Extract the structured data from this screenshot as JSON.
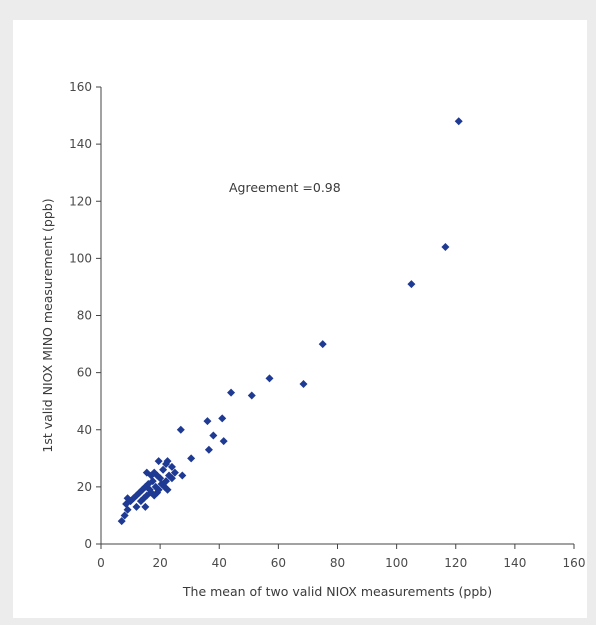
{
  "chart_data": {
    "type": "scatter",
    "title": "",
    "xlabel": "The mean of two valid NIOX measurements (ppb)",
    "ylabel": "1st valid NIOX MINO measurement (ppb)",
    "annotation": "Agreement =0.98",
    "xlim": [
      0,
      160
    ],
    "ylim": [
      0,
      160
    ],
    "xticks": [
      0,
      20,
      40,
      60,
      80,
      100,
      120,
      140,
      160
    ],
    "yticks": [
      0,
      20,
      40,
      60,
      80,
      100,
      120,
      140,
      160
    ],
    "grid": false,
    "marker": "diamond",
    "marker_color": "#1f3a93",
    "points": [
      [
        121,
        148
      ],
      [
        116.5,
        104
      ],
      [
        105,
        91
      ],
      [
        75,
        70
      ],
      [
        57,
        58
      ],
      [
        68.5,
        56
      ],
      [
        51,
        52
      ],
      [
        44,
        53
      ],
      [
        41,
        44
      ],
      [
        36,
        43
      ],
      [
        38,
        38
      ],
      [
        41.5,
        36
      ],
      [
        36.5,
        33
      ],
      [
        27,
        40
      ],
      [
        30.5,
        30
      ],
      [
        27.5,
        24
      ],
      [
        24,
        27
      ],
      [
        22.5,
        29
      ],
      [
        22,
        28
      ],
      [
        21,
        26
      ],
      [
        19.5,
        29
      ],
      [
        23,
        24
      ],
      [
        22,
        22
      ],
      [
        21,
        21
      ],
      [
        20,
        23
      ],
      [
        19,
        24
      ],
      [
        18,
        25
      ],
      [
        17,
        24
      ],
      [
        15.5,
        25
      ],
      [
        16,
        21
      ],
      [
        15,
        20
      ],
      [
        16.5,
        19
      ],
      [
        17.5,
        22
      ],
      [
        18.5,
        20
      ],
      [
        19.5,
        19
      ],
      [
        20.5,
        21
      ],
      [
        21.5,
        20
      ],
      [
        17,
        18
      ],
      [
        15.5,
        17
      ],
      [
        14,
        19
      ],
      [
        13,
        18
      ],
      [
        12,
        17
      ],
      [
        11,
        16
      ],
      [
        10,
        15
      ],
      [
        9,
        16
      ],
      [
        8.5,
        14
      ],
      [
        9,
        12
      ],
      [
        8,
        10
      ],
      [
        7,
        8
      ],
      [
        12,
        13
      ],
      [
        13.5,
        15
      ],
      [
        15,
        13
      ],
      [
        18,
        17
      ],
      [
        19,
        18
      ],
      [
        14.5,
        16
      ],
      [
        22.5,
        19
      ],
      [
        25,
        25
      ],
      [
        24,
        23
      ]
    ]
  }
}
